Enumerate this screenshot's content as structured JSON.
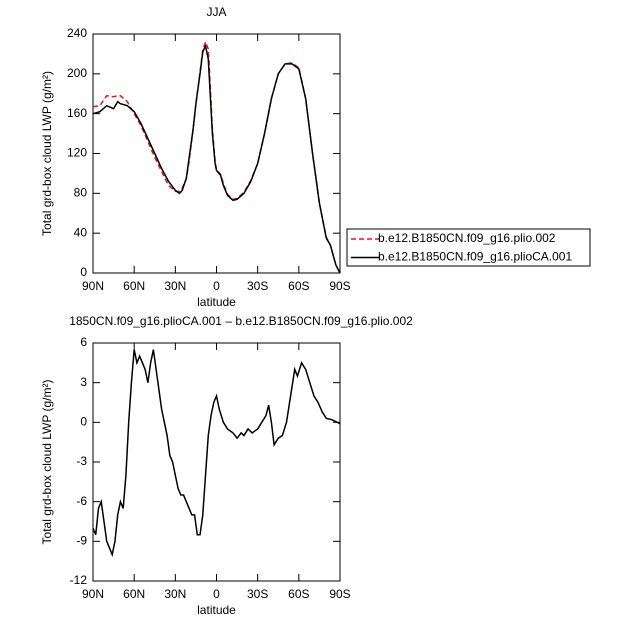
{
  "chart_data": [
    {
      "type": "line",
      "title": "JJA",
      "xlabel": "latitude",
      "ylabel": "Total grd-box cloud LWP (g/m²)",
      "xlim": [
        90,
        -90
      ],
      "xticks": [
        {
          "value": 90,
          "label": "90N"
        },
        {
          "value": 60,
          "label": "60N"
        },
        {
          "value": 30,
          "label": "30N"
        },
        0,
        {
          "value": -30,
          "label": "30S"
        },
        {
          "value": -60,
          "label": "60S"
        },
        {
          "value": -90,
          "label": "90S"
        }
      ],
      "ylim": [
        0,
        240
      ],
      "yticks": [
        0,
        40,
        80,
        120,
        160,
        200,
        240
      ],
      "legend": "right",
      "x": [
        90,
        85,
        80,
        75,
        72,
        70,
        65,
        60,
        55,
        50,
        45,
        40,
        35,
        30,
        27,
        25,
        22,
        20,
        17,
        15,
        12,
        10,
        8,
        6,
        5,
        3,
        1,
        0,
        -3,
        -5,
        -8,
        -12,
        -15,
        -20,
        -25,
        -30,
        -35,
        -40,
        -45,
        -50,
        -55,
        -60,
        -65,
        -70,
        -75,
        -80,
        -83,
        -87,
        -90
      ],
      "series": [
        {
          "name": "b.e12.B1850CN.f09_g16.plio.002",
          "color": "#e8141c",
          "dash": true,
          "values": [
            167,
            168,
            178,
            177,
            178,
            178,
            172,
            160,
            148,
            132,
            116,
            102,
            88,
            82,
            82,
            85,
            95,
            112,
            145,
            170,
            202,
            224,
            232,
            225,
            200,
            145,
            112,
            104,
            99,
            90,
            79,
            74,
            75,
            81,
            93,
            110,
            140,
            175,
            200,
            210,
            211,
            206,
            175,
            120,
            70,
            36,
            28,
            8,
            0
          ]
        },
        {
          "name": "b.e12.B1850CN.f09_g16.plioCA.001",
          "color": "#000000",
          "dash": false,
          "values": [
            160,
            162,
            168,
            165,
            172,
            170,
            168,
            162,
            150,
            135,
            120,
            105,
            92,
            83,
            80,
            83,
            95,
            115,
            145,
            170,
            200,
            222,
            228,
            215,
            190,
            140,
            110,
            103,
            98,
            88,
            78,
            73,
            74,
            80,
            92,
            110,
            140,
            175,
            200,
            210,
            210,
            205,
            175,
            120,
            70,
            35,
            28,
            8,
            0
          ]
        }
      ]
    },
    {
      "type": "line",
      "title": "1850CN.f09_g16.plioCA.001 – b.e12.B1850CN.f09_g16.plio.002",
      "xlabel": "latitude",
      "ylabel": "Total grd-box cloud LWP (g/m²)",
      "xlim": [
        90,
        -90
      ],
      "xticks": [
        {
          "value": 90,
          "label": "90N"
        },
        {
          "value": 60,
          "label": "60N"
        },
        {
          "value": 30,
          "label": "30N"
        },
        0,
        {
          "value": -30,
          "label": "30S"
        },
        {
          "value": -60,
          "label": "60S"
        },
        {
          "value": -90,
          "label": "90S"
        }
      ],
      "ylim": [
        -12,
        6
      ],
      "yticks": [
        -12,
        -9,
        -6,
        -3,
        0,
        3,
        6
      ],
      "x": [
        90,
        88,
        86,
        84,
        82,
        80,
        78,
        76,
        74,
        72,
        70,
        68,
        66,
        64,
        62,
        60,
        58,
        56,
        54,
        52,
        50,
        48,
        46,
        44,
        42,
        40,
        38,
        36,
        34,
        32,
        30,
        28,
        26,
        24,
        22,
        20,
        18,
        16,
        14,
        12,
        10,
        8,
        6,
        4,
        2,
        0,
        -2,
        -5,
        -8,
        -12,
        -15,
        -18,
        -20,
        -23,
        -26,
        -30,
        -33,
        -36,
        -38,
        -40,
        -42,
        -45,
        -48,
        -51,
        -54,
        -57,
        -59,
        -62,
        -65,
        -68,
        -71,
        -74,
        -77,
        -80,
        -84,
        -88,
        -90
      ],
      "series": [
        {
          "color": "#000000",
          "dash": false,
          "values": [
            -8,
            -8.5,
            -6.5,
            -6,
            -7.5,
            -9,
            -9.5,
            -10,
            -9,
            -7,
            -6,
            -6.5,
            -4,
            0,
            3,
            5.5,
            4.5,
            5,
            4.5,
            4,
            3,
            4.5,
            5.5,
            4,
            2.5,
            1,
            0,
            -1,
            -2.5,
            -3,
            -4,
            -5,
            -5.5,
            -5.5,
            -6,
            -6.5,
            -7,
            -7,
            -8.5,
            -8.5,
            -7,
            -4,
            -1,
            0.5,
            1.5,
            2,
            1,
            0,
            -0.5,
            -0.8,
            -1.2,
            -0.8,
            -1,
            -0.5,
            -0.8,
            -0.5,
            0,
            0.5,
            1.3,
            0,
            -1.7,
            -1.2,
            -1,
            0,
            2,
            4,
            3.5,
            4.5,
            4,
            3,
            2,
            1.5,
            0.8,
            0.3,
            0.2,
            0,
            -0.1
          ]
        }
      ]
    }
  ]
}
